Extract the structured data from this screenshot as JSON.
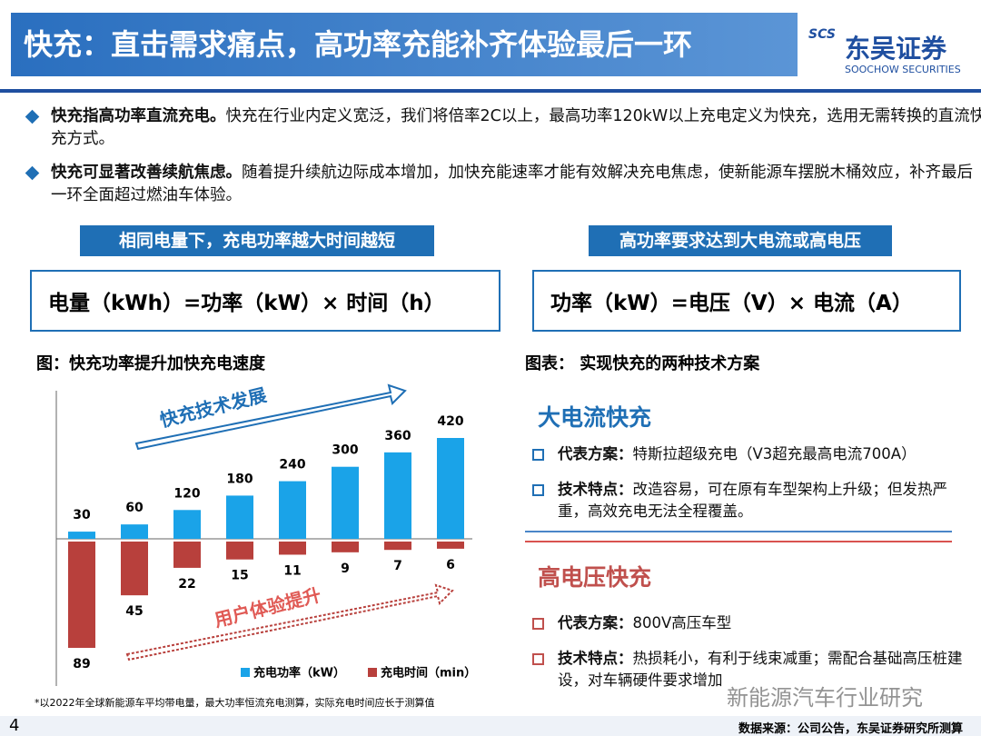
{
  "header": {
    "title": "快充：直击需求痛点，高功率充能补齐体验最后一环",
    "logo_mark": "SCS",
    "logo_name": "东吴证券",
    "logo_sub": "SOOCHOW SECURITIES"
  },
  "bullets": [
    {
      "bold": "快充指高功率直流充电。",
      "text": "快充在行业内定义宽泛，我们将倍率2C以上，最高功率120kW以上充电定义为快充，选用无需转换的直流快充方式。"
    },
    {
      "bold": "快充可显著改善续航焦虑。",
      "text": "随着提升续航边际成本增加，加快充能速率才能有效解决充电焦虑，使新能源车摆脱木桶效应，补齐最后一环全面超过燃油车体验。"
    }
  ],
  "formulas": [
    {
      "label": "相同电量下，充电功率越大时间越短",
      "formula": "电量（kWh）=功率（kW）× 时间（h）"
    },
    {
      "label": "高功率要求达到大电流或高电压",
      "formula": "功率（kW）=电压（V）× 电流（A）"
    }
  ],
  "chart_data": {
    "type": "bar",
    "title": "图：快充功率提升加快充电速度",
    "categories": [
      null,
      null,
      null,
      null,
      null,
      null,
      null,
      null
    ],
    "series": [
      {
        "name": "充电功率（kW）",
        "color": "#1aa3e8",
        "values": [
          30,
          60,
          120,
          180,
          240,
          300,
          360,
          420
        ]
      },
      {
        "name": "充电时间（min）",
        "color": "#b8403c",
        "values": [
          89,
          45,
          22,
          15,
          11,
          9,
          7,
          6
        ]
      }
    ],
    "annotations": [
      "快充技术发展",
      "用户体验提升"
    ],
    "footnote": "*以2022年全球新能源车平均带电量，最大功率恒流充电测算，实际充电时间应长于测算值"
  },
  "schemes": {
    "title": "图表： 实现快充的两种技术方案",
    "items": [
      {
        "name": "大电流快充",
        "points": [
          {
            "key": "代表方案：",
            "text": "特斯拉超级充电（V3超充最高电流700A）"
          },
          {
            "key": "技术特点：",
            "text": "改造容易，可在原有车型架构上升级；但发热严重，高效充电无法全程覆盖。"
          }
        ]
      },
      {
        "name": "高电压快充",
        "points": [
          {
            "key": "代表方案：",
            "text": "800V高压车型"
          },
          {
            "key": "技术特点：",
            "text": "热损耗小，有利于线束减重；需配合基础高压桩建设，对车辆硬件要求增加"
          }
        ]
      }
    ]
  },
  "footer": {
    "page": "4",
    "source": "数据来源：公司公告，东吴证券研究所测算",
    "watermark": "新能源汽车行业研究"
  }
}
